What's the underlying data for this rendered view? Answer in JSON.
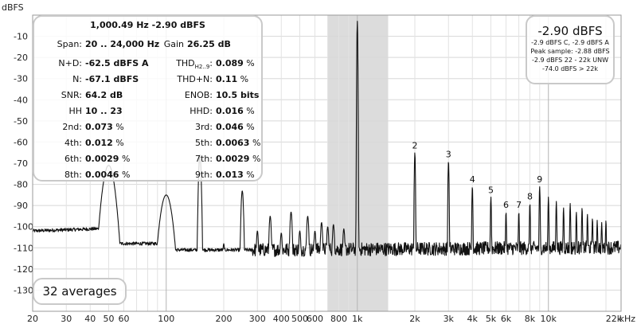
{
  "chart_data": {
    "type": "line",
    "ylabel": "dBFS",
    "xlabel": "",
    "x_unit": "kHz",
    "x_scale": "log",
    "xlim": [
      20,
      24000
    ],
    "ylim": [
      -140,
      0
    ],
    "y_ticks": [
      -10,
      -20,
      -30,
      -40,
      -50,
      -60,
      -70,
      -80,
      -90,
      -100,
      -110,
      -120,
      -130
    ],
    "x_ticks": [
      {
        "value": 20,
        "label": "20"
      },
      {
        "value": 30,
        "label": "30"
      },
      {
        "value": 40,
        "label": "40"
      },
      {
        "value": 50,
        "label": "50"
      },
      {
        "value": 60,
        "label": "60"
      },
      {
        "value": 100,
        "label": "100"
      },
      {
        "value": 200,
        "label": "200"
      },
      {
        "value": 300,
        "label": "300"
      },
      {
        "value": 400,
        "label": "400"
      },
      {
        "value": 500,
        "label": "500"
      },
      {
        "value": 600,
        "label": "600"
      },
      {
        "value": 800,
        "label": "800"
      },
      {
        "value": 1000,
        "label": "1k"
      },
      {
        "value": 2000,
        "label": "2k"
      },
      {
        "value": 3000,
        "label": "3k"
      },
      {
        "value": 4000,
        "label": "4k"
      },
      {
        "value": 5000,
        "label": "5k"
      },
      {
        "value": 6000,
        "label": "6k"
      },
      {
        "value": 8000,
        "label": "8k"
      },
      {
        "value": 10000,
        "label": "10k"
      },
      {
        "value": 22000,
        "label": "22k"
      }
    ],
    "grid": true,
    "highlight_band": [
      700,
      1450
    ],
    "noise_floor": -111,
    "spectrum_peaks": [
      {
        "f": 50,
        "level": -71
      },
      {
        "f": 100,
        "level": -85
      },
      {
        "f": 150,
        "level": -66
      },
      {
        "f": 200,
        "level": -108
      },
      {
        "f": 250,
        "level": -83
      },
      {
        "f": 300,
        "level": -102
      },
      {
        "f": 350,
        "level": -95
      },
      {
        "f": 400,
        "level": -103
      },
      {
        "f": 450,
        "level": -93
      },
      {
        "f": 500,
        "level": -102
      },
      {
        "f": 550,
        "level": -95
      },
      {
        "f": 600,
        "level": -102
      },
      {
        "f": 650,
        "level": -98
      },
      {
        "f": 700,
        "level": -100
      },
      {
        "f": 750,
        "level": -99
      },
      {
        "f": 850,
        "level": -101
      },
      {
        "f": 1000,
        "level": -2.9
      },
      {
        "f": 2000,
        "level": -65
      },
      {
        "f": 3000,
        "level": -69
      },
      {
        "f": 4000,
        "level": -81
      },
      {
        "f": 5000,
        "level": -86
      },
      {
        "f": 6000,
        "level": -93
      },
      {
        "f": 7000,
        "level": -93
      },
      {
        "f": 8000,
        "level": -89
      },
      {
        "f": 9000,
        "level": -81
      },
      {
        "f": 10000,
        "level": -86
      },
      {
        "f": 11000,
        "level": -88
      },
      {
        "f": 12000,
        "level": -91
      },
      {
        "f": 13000,
        "level": -89
      },
      {
        "f": 14000,
        "level": -93
      },
      {
        "f": 15000,
        "level": -91
      },
      {
        "f": 16000,
        "level": -94
      },
      {
        "f": 17000,
        "level": -96
      },
      {
        "f": 18000,
        "level": -97
      },
      {
        "f": 19000,
        "level": -98
      },
      {
        "f": 20000,
        "level": -97
      }
    ],
    "harmonic_labels": [
      {
        "label": "2",
        "f": 2000,
        "level": -65
      },
      {
        "label": "3",
        "f": 3000,
        "level": -69
      },
      {
        "label": "4",
        "f": 4000,
        "level": -81
      },
      {
        "label": "5",
        "f": 5000,
        "level": -86
      },
      {
        "label": "6",
        "f": 6000,
        "level": -93
      },
      {
        "label": "7",
        "f": 7000,
        "level": -93
      },
      {
        "label": "8",
        "f": 8000,
        "level": -89
      },
      {
        "label": "9",
        "f": 9000,
        "level": -81
      }
    ]
  },
  "stats_panel": {
    "header": "1,000.49 Hz  -2.90 dBFS",
    "span": {
      "label": "Span:",
      "value": "20 .. 24,000 Hz",
      "gain_label": "Gain",
      "gain_value": "26.25 dB"
    },
    "rows": [
      {
        "l1": "N+D:",
        "v1": "-62.5 dBFS A",
        "u1": "",
        "l2": "THD",
        "l2_sub": "H2..9",
        "v2": "0.089",
        "u2": "%"
      },
      {
        "l1": "N:",
        "v1": "-67.1 dBFS",
        "u1": "",
        "l2": "THD+N:",
        "l2_sub": "",
        "v2": "0.11",
        "u2": "%"
      },
      {
        "l1": "SNR:",
        "v1": "64.2 dB",
        "u1": "",
        "l2": "ENOB:",
        "l2_sub": "",
        "v2": "10.5 bits",
        "u2": ""
      },
      {
        "l1": "HH",
        "v1": "10 .. 23",
        "u1": "",
        "l2": "HHD:",
        "l2_sub": "",
        "v2": "0.016",
        "u2": "%"
      },
      {
        "l1": "2nd:",
        "v1": "0.073",
        "u1": "%",
        "l2": "3rd:",
        "l2_sub": "",
        "v2": "0.046",
        "u2": "%"
      },
      {
        "l1": "4th:",
        "v1": "0.012",
        "u1": "%",
        "l2": "5th:",
        "l2_sub": "",
        "v2": "0.0063",
        "u2": "%"
      },
      {
        "l1": "6th:",
        "v1": "0.0029",
        "u1": "%",
        "l2": "7th:",
        "l2_sub": "",
        "v2": "0.0029",
        "u2": "%"
      },
      {
        "l1": "8th:",
        "v1": "0.0046",
        "u1": "%",
        "l2": "9th:",
        "l2_sub": "",
        "v2": "0.013",
        "u2": "%"
      }
    ]
  },
  "level_panel": {
    "main": "-2.90 dBFS",
    "lines": [
      "-2.9 dBFS C, -2.9 dBFS A",
      "Peak sample: -2.88 dBFS",
      "-2.9 dBFS 22 - 22k UNW",
      "-74.0 dBFS > 22k"
    ]
  },
  "averages": "32 averages"
}
